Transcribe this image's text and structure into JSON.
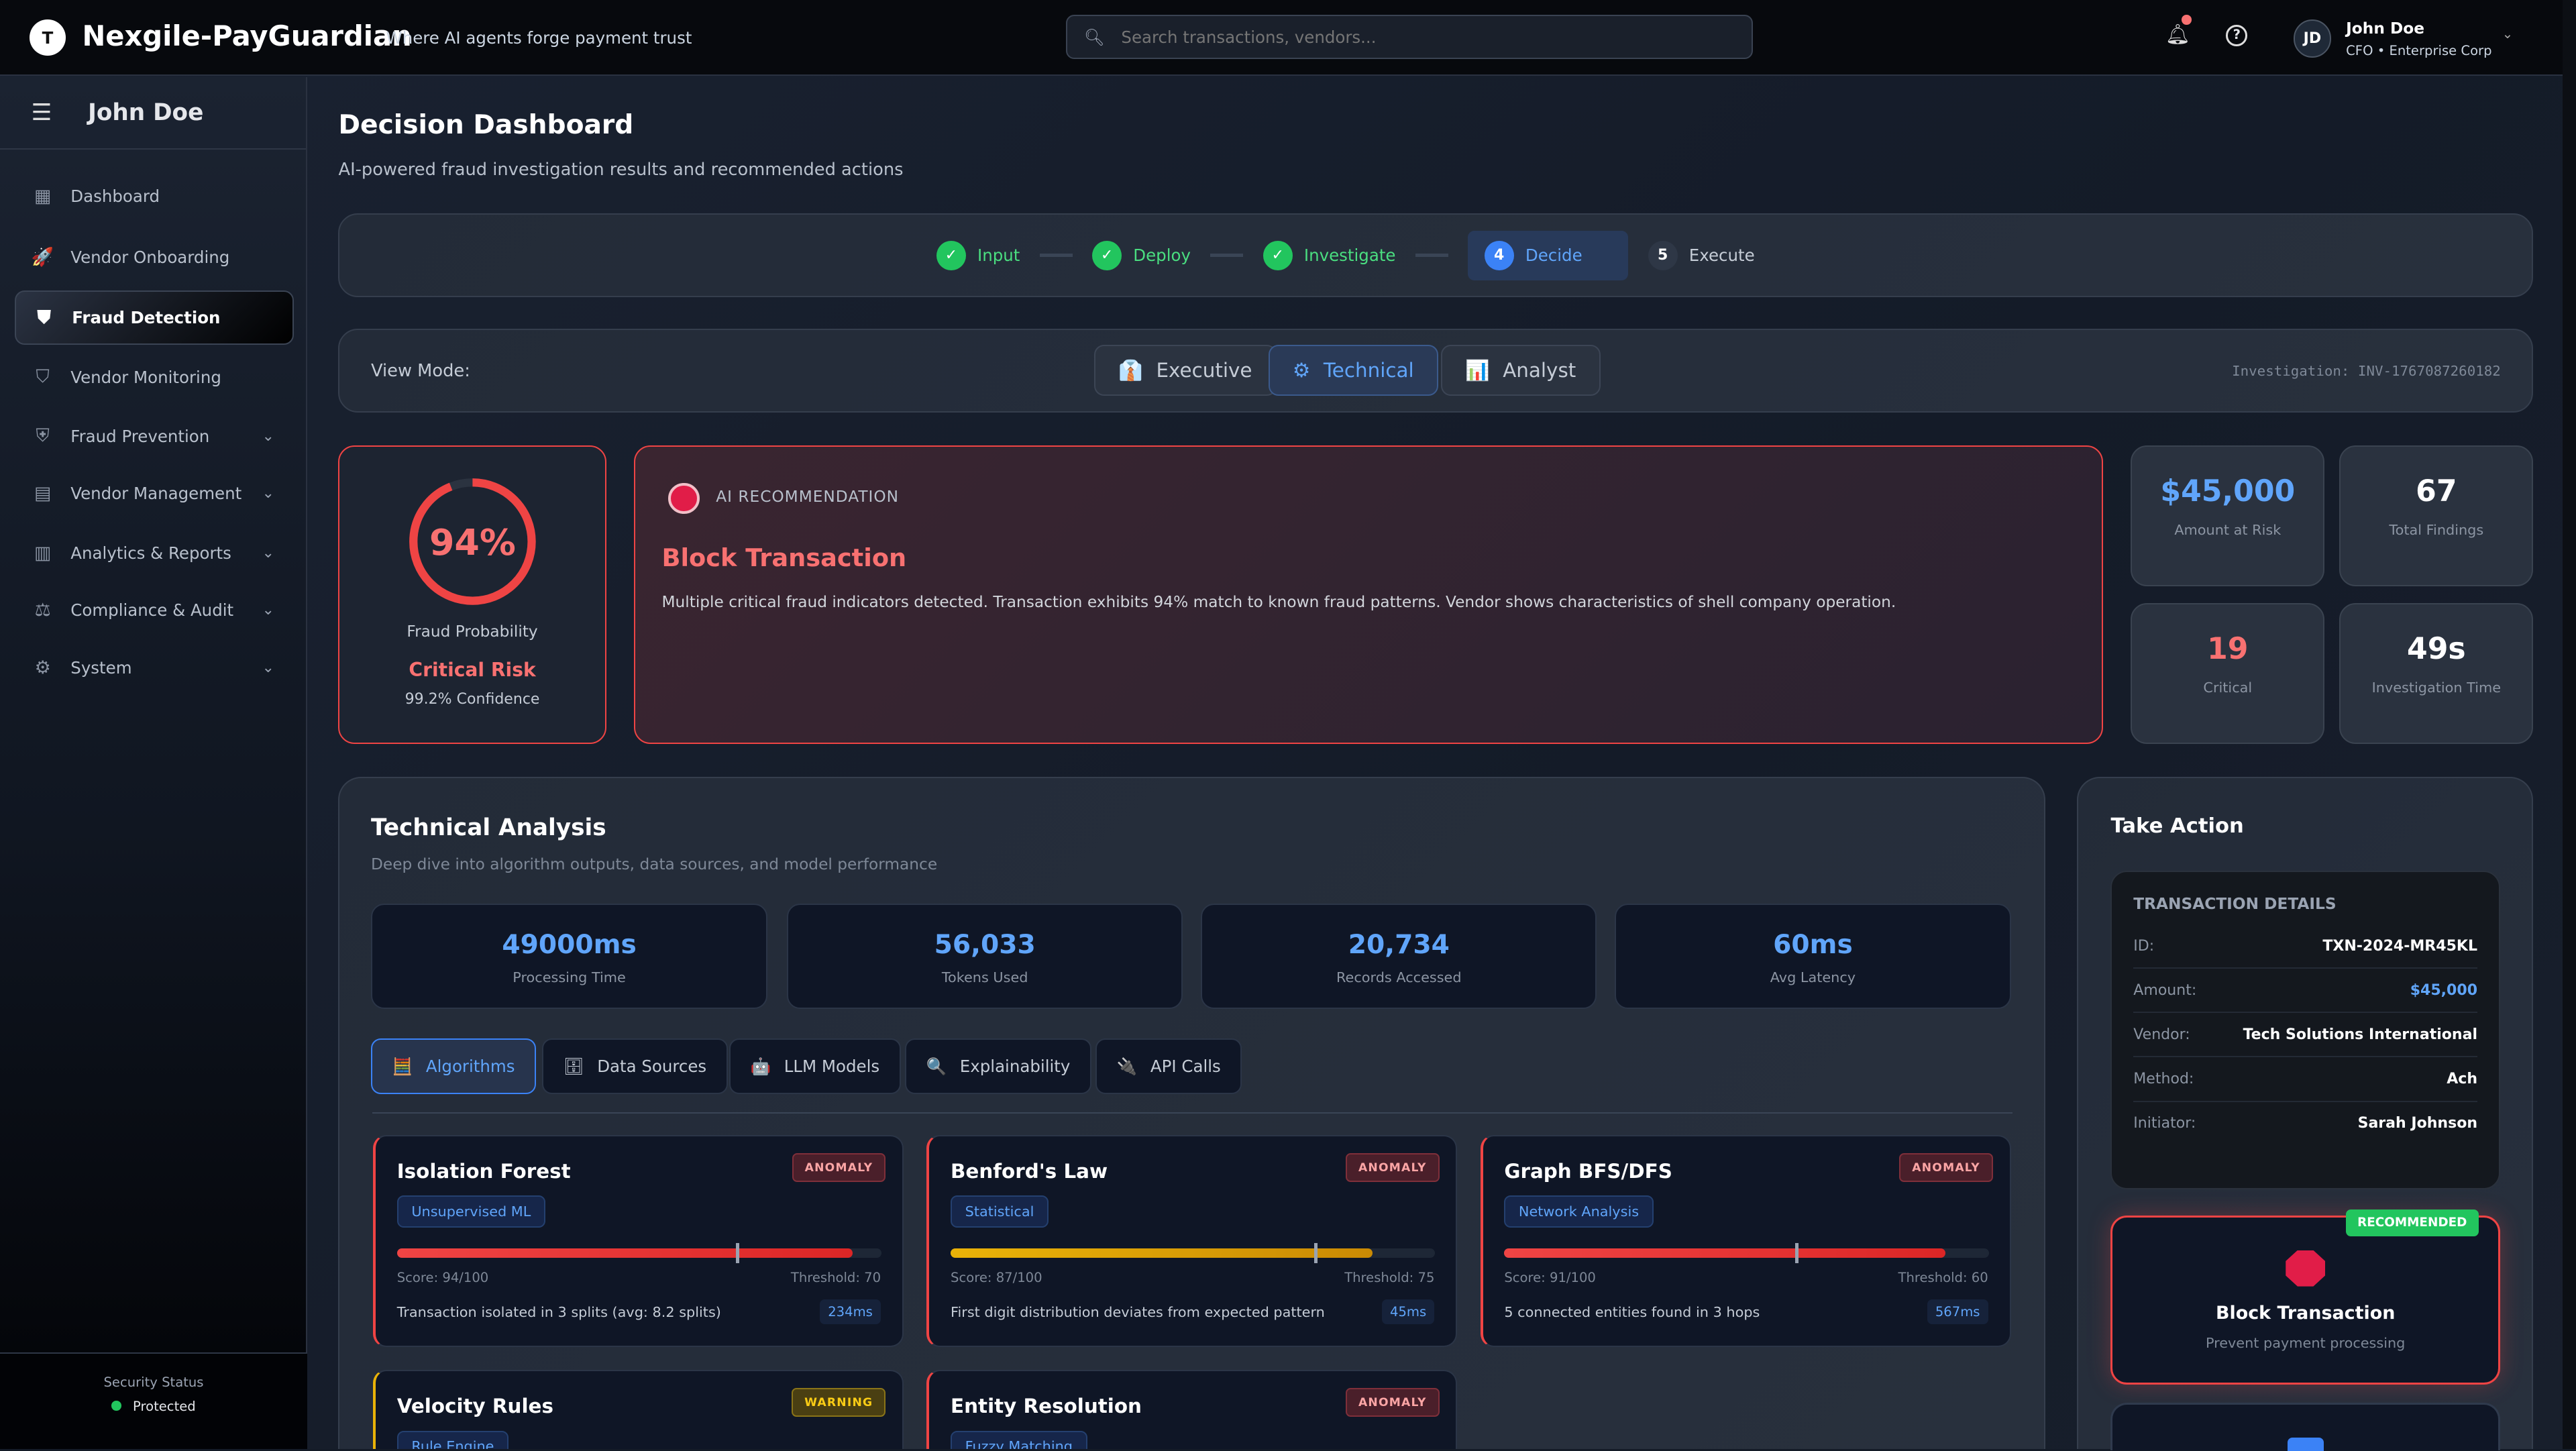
{
  "header": {
    "logo_letter": "T",
    "brand": "Nexgile-PayGuardian",
    "tagline": "Where AI agents forge payment trust",
    "search_placeholder": "Search transactions, vendors...",
    "user_initials": "JD",
    "user_name": "John Doe",
    "user_role": "CFO • Enterprise Corp"
  },
  "sidebar": {
    "user": "John Doe",
    "items": [
      {
        "label": "Dashboard",
        "icon": "dashboard-icon",
        "glyph": "▦"
      },
      {
        "label": "Vendor Onboarding",
        "icon": "rocket-icon",
        "glyph": "🚀"
      },
      {
        "label": "Fraud Detection",
        "icon": "shield-icon",
        "glyph": "⛊",
        "active": true
      },
      {
        "label": "Vendor Monitoring",
        "icon": "shield-half-icon",
        "glyph": "⛉"
      },
      {
        "label": "Fraud Prevention",
        "icon": "shield-check-icon",
        "glyph": "⛨",
        "expandable": true
      },
      {
        "label": "Vendor Management",
        "icon": "building-icon",
        "glyph": "▤",
        "expandable": true
      },
      {
        "label": "Analytics & Reports",
        "icon": "chart-icon",
        "glyph": "▥",
        "expandable": true
      },
      {
        "label": "Compliance & Audit",
        "icon": "gavel-icon",
        "glyph": "⚖",
        "expandable": true
      },
      {
        "label": "System",
        "icon": "gear-icon",
        "glyph": "⚙",
        "expandable": true
      }
    ],
    "security_label": "Security Status",
    "security_value": "Protected"
  },
  "page": {
    "title": "Decision Dashboard",
    "subtitle": "AI-powered fraud investigation results and recommended actions"
  },
  "stepper": [
    {
      "num": "✓",
      "label": "Input",
      "state": "done"
    },
    {
      "num": "✓",
      "label": "Deploy",
      "state": "done"
    },
    {
      "num": "✓",
      "label": "Investigate",
      "state": "done"
    },
    {
      "num": "4",
      "label": "Decide",
      "state": "current"
    },
    {
      "num": "5",
      "label": "Execute",
      "state": "pending"
    }
  ],
  "view_mode": {
    "label": "View Mode:",
    "options": [
      {
        "label": "Executive",
        "icon": "👔"
      },
      {
        "label": "Technical",
        "icon": "⚙",
        "active": true
      },
      {
        "label": "Analyst",
        "icon": "📊"
      }
    ],
    "investigation": "Investigation: INV-1767087260182"
  },
  "fraud": {
    "percent": 94,
    "percent_label": "94%",
    "label": "Fraud Probability",
    "risk": "Critical Risk",
    "confidence": "99.2% Confidence"
  },
  "recommendation": {
    "kicker": "AI RECOMMENDATION",
    "title": "Block Transaction",
    "text": "Multiple critical fraud indicators detected. Transaction exhibits 94% match to known fraud patterns. Vendor shows characteristics of shell company operation."
  },
  "stats": [
    {
      "value": "$45,000",
      "label": "Amount at Risk",
      "color": "#60a5fa"
    },
    {
      "value": "67",
      "label": "Total Findings",
      "color": "#ffffff"
    },
    {
      "value": "19",
      "label": "Critical",
      "color": "#f87171"
    },
    {
      "value": "49s",
      "label": "Investigation Time",
      "color": "#ffffff"
    }
  ],
  "technical": {
    "title": "Technical Analysis",
    "subtitle": "Deep dive into algorithm outputs, data sources, and model performance",
    "metrics": [
      {
        "value": "49000ms",
        "label": "Processing Time"
      },
      {
        "value": "56,033",
        "label": "Tokens Used"
      },
      {
        "value": "20,734",
        "label": "Records Accessed"
      },
      {
        "value": "60ms",
        "label": "Avg Latency"
      }
    ],
    "tabs": [
      {
        "label": "Algorithms",
        "icon": "🧮",
        "active": true
      },
      {
        "label": "Data Sources",
        "icon": "🗄"
      },
      {
        "label": "LLM Models",
        "icon": "🤖"
      },
      {
        "label": "Explainability",
        "icon": "🔍"
      },
      {
        "label": "API Calls",
        "icon": "🔌"
      }
    ],
    "algorithms": [
      {
        "name": "Isolation Forest",
        "status": "ANOMALY",
        "type": "Unsupervised ML",
        "score": 94,
        "threshold": 70,
        "score_label": "Score: 94/100",
        "threshold_label": "Threshold: 70",
        "desc": "Transaction isolated in 3 splits (avg: 8.2 splits)",
        "time": "234ms",
        "color": "#ef4444"
      },
      {
        "name": "Benford's Law",
        "status": "ANOMALY",
        "type": "Statistical",
        "score": 87,
        "threshold": 75,
        "score_label": "Score: 87/100",
        "threshold_label": "Threshold: 75",
        "desc": "First digit distribution deviates from expected pattern",
        "time": "45ms",
        "color": "#eab308"
      },
      {
        "name": "Graph BFS/DFS",
        "status": "ANOMALY",
        "type": "Network Analysis",
        "score": 91,
        "threshold": 60,
        "score_label": "Score: 91/100",
        "threshold_label": "Threshold: 60",
        "desc": "5 connected entities found in 3 hops",
        "time": "567ms",
        "color": "#ef4444"
      },
      {
        "name": "Velocity Rules",
        "status": "WARNING",
        "type": "Rule Engine"
      },
      {
        "name": "Entity Resolution",
        "status": "ANOMALY",
        "type": "Fuzzy Matching"
      }
    ]
  },
  "action": {
    "title": "Take Action",
    "details_title": "TRANSACTION DETAILS",
    "details": [
      {
        "k": "ID:",
        "v": "TXN-2024-MR45KL"
      },
      {
        "k": "Amount:",
        "v": "$45,000"
      },
      {
        "k": "Vendor:",
        "v": "Tech Solutions International"
      },
      {
        "k": "Method:",
        "v": "Ach"
      },
      {
        "k": "Initiator:",
        "v": "Sarah Johnson"
      }
    ],
    "recommended_badge": "RECOMMENDED",
    "block_title": "Block Transaction",
    "block_sub": "Prevent payment processing"
  }
}
